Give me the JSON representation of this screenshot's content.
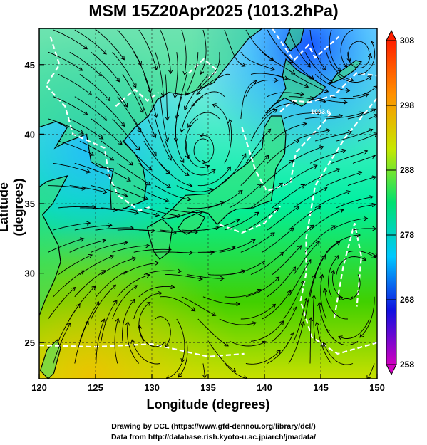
{
  "title": "MSM 15Z20Apr2025 (1013.2hPa)",
  "axes": {
    "xlabel": "Longitude (degrees)",
    "ylabel": "Latitude  (degrees)",
    "x_ticks": [
      "120",
      "125",
      "130",
      "135",
      "140",
      "145",
      "150"
    ],
    "y_ticks": [
      "25",
      "30",
      "35",
      "40",
      "45"
    ]
  },
  "colorbar": {
    "ticks": [
      "258",
      "268",
      "278",
      "288",
      "298",
      "308"
    ],
    "colors": [
      "#d000c0",
      "#1010e0",
      "#00c8ff",
      "#00e070",
      "#c8e800",
      "#ff9000",
      "#ff2000"
    ]
  },
  "contour_label": "1003.6",
  "credits": {
    "line1": "Drawing by DCL (https://www.gfd-dennou.org/library/dcl/)",
    "line2": "Data from http://database.rish.kyoto-u.ac.jp/arch/jmadata/"
  },
  "chart_data": {
    "type": "heatmap",
    "title": "MSM 15Z20Apr2025 (1013.2hPa)",
    "xlabel": "Longitude (degrees)",
    "ylabel": "Latitude  (degrees)",
    "xlim": [
      120,
      150
    ],
    "ylim": [
      22.4,
      47.6
    ],
    "colorbar_range": [
      258,
      308
    ],
    "features": [
      {
        "kind": "cyclonic_vortex",
        "lon": 134.5,
        "lat": 38.5
      },
      {
        "kind": "cyclonic_vortex",
        "lon": 148.5,
        "lat": 45.5
      },
      {
        "kind": "anticyclonic_circulation",
        "lon": 130.5,
        "lat": 26.5
      },
      {
        "kind": "anticyclonic_circulation",
        "lon": 147.5,
        "lat": 30.0
      }
    ]
  }
}
